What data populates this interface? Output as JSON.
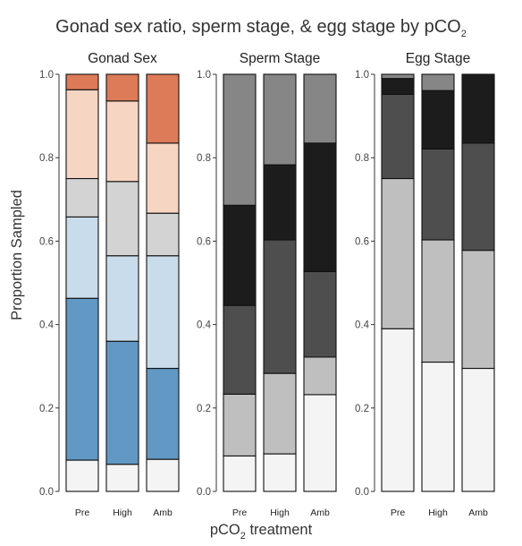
{
  "chart": {
    "title_main": "Gonad sex ratio, sperm stage, & egg stage by pCO",
    "title_sub": "2",
    "ylabel": "Proportion Sampled",
    "xlabel_main": "pCO",
    "xlabel_sub": "2",
    "xlabel_rest": " treatment"
  },
  "chart_data": [
    {
      "type": "bar",
      "stacked": true,
      "title": "Gonad Sex",
      "categories": [
        "Pre",
        "High",
        "Amb"
      ],
      "ylim": [
        0,
        1
      ],
      "yticks": [
        "0.0",
        "0.2",
        "0.4",
        "0.6",
        "0.8",
        "1.0"
      ],
      "series": [
        {
          "color": "#f4f4f4",
          "values": [
            0.075,
            0.065,
            0.077
          ]
        },
        {
          "color": "#6298c4",
          "values": [
            0.388,
            0.295,
            0.218
          ]
        },
        {
          "color": "#c8dceb",
          "values": [
            0.195,
            0.205,
            0.27
          ]
        },
        {
          "color": "#d3d3d3",
          "values": [
            0.092,
            0.178,
            0.102
          ]
        },
        {
          "color": "#f6d5c3",
          "values": [
            0.213,
            0.193,
            0.168
          ]
        },
        {
          "color": "#dd7a58",
          "values": [
            0.037,
            0.064,
            0.165
          ]
        }
      ]
    },
    {
      "type": "bar",
      "stacked": true,
      "title": "Sperm Stage",
      "categories": [
        "Pre",
        "High",
        "Amb"
      ],
      "ylim": [
        0,
        1
      ],
      "yticks": [
        "0.0",
        "0.2",
        "0.4",
        "0.6",
        "0.8",
        "1.0"
      ],
      "series": [
        {
          "color": "#f4f4f4",
          "values": [
            0.085,
            0.09,
            0.232
          ]
        },
        {
          "color": "#bfbfbf",
          "values": [
            0.148,
            0.193,
            0.09
          ]
        },
        {
          "color": "#4e4e4e",
          "values": [
            0.213,
            0.32,
            0.205
          ]
        },
        {
          "color": "#1c1c1c",
          "values": [
            0.24,
            0.18,
            0.308
          ]
        },
        {
          "color": "#868686",
          "values": [
            0.314,
            0.217,
            0.165
          ]
        }
      ]
    },
    {
      "type": "bar",
      "stacked": true,
      "title": "Egg Stage",
      "categories": [
        "Pre",
        "High",
        "Amb"
      ],
      "ylim": [
        0,
        1
      ],
      "yticks": [
        "0.0",
        "0.2",
        "0.4",
        "0.6",
        "0.8",
        "1.0"
      ],
      "series": [
        {
          "color": "#f4f4f4",
          "values": [
            0.39,
            0.31,
            0.295
          ]
        },
        {
          "color": "#bfbfbf",
          "values": [
            0.36,
            0.293,
            0.283
          ]
        },
        {
          "color": "#4e4e4e",
          "values": [
            0.202,
            0.218,
            0.257
          ]
        },
        {
          "color": "#1c1c1c",
          "values": [
            0.038,
            0.14,
            0.165
          ]
        },
        {
          "color": "#868686",
          "values": [
            0.01,
            0.039,
            0.0
          ]
        }
      ]
    }
  ]
}
